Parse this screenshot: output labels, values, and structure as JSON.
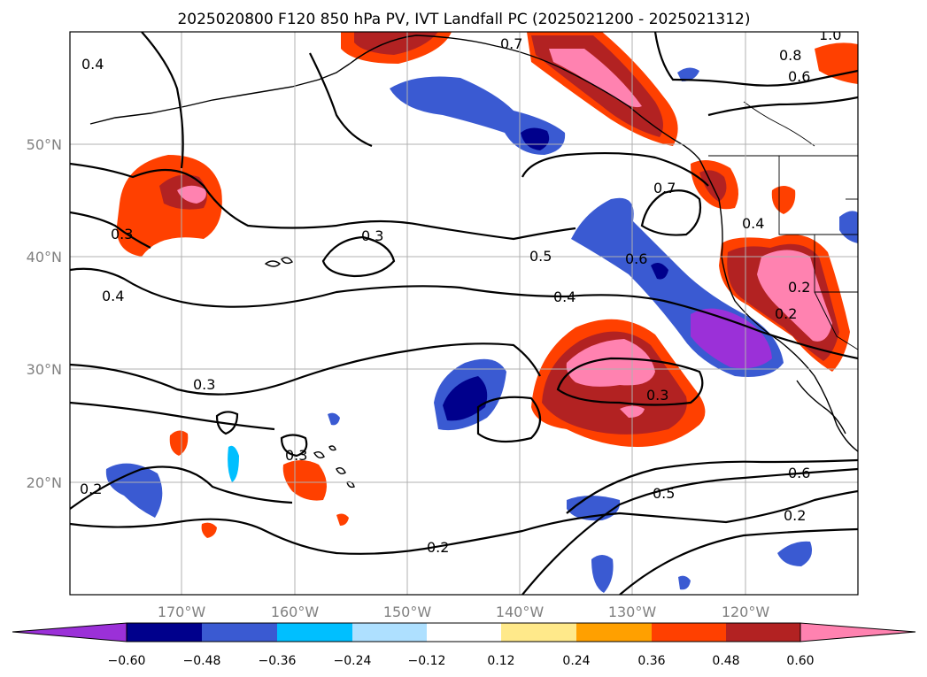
{
  "title": "2025020800 F120 850 hPa PV, IVT Landfall PC (2025021200 - 2025021312)",
  "map": {
    "lat_ticks": [
      "50°N",
      "40°N",
      "30°N",
      "20°N"
    ],
    "lon_ticks": [
      "170°W",
      "160°W",
      "150°W",
      "140°W",
      "130°W",
      "120°W"
    ],
    "grid": true
  },
  "colorbar": {
    "labels": [
      "−0.60",
      "−0.48",
      "−0.36",
      "−0.24",
      "−0.12",
      "0.12",
      "0.24",
      "0.36",
      "0.48",
      "0.60"
    ],
    "bins": [
      "#9b30d8",
      "#00008c",
      "#3a5ad2",
      "#00bfff",
      "#aee0ff",
      "#ffffff",
      "#ffe98a",
      "#ffa000",
      "#ff4000",
      "#b22222",
      "#ff82b0"
    ],
    "extend": "both"
  },
  "contour_labels": [
    "0.4",
    "0.7",
    "1.0",
    "0.8",
    "0.6",
    "0.7",
    "0.3",
    "0.3",
    "0.4",
    "0.5",
    "0.6",
    "0.4",
    "0.4",
    "0.2",
    "0.2",
    "0.3",
    "0.3",
    "0.3",
    "0.2",
    "0.5",
    "0.6",
    "0.2",
    "0.2"
  ]
}
